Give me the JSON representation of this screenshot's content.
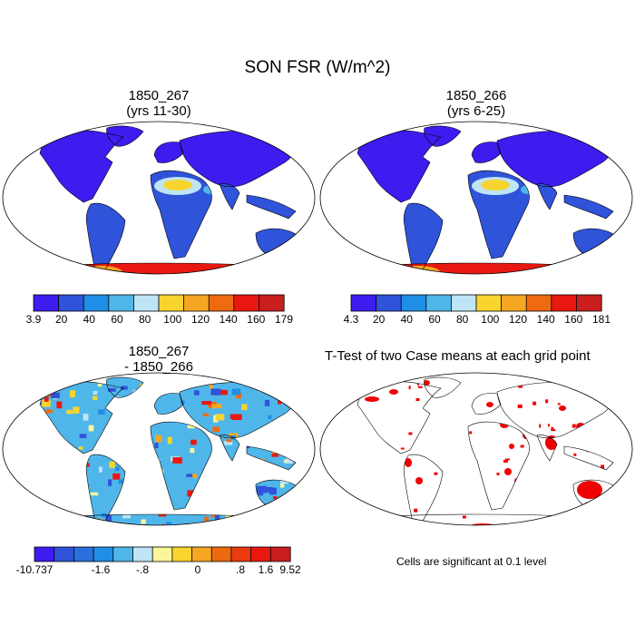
{
  "title": "SON FSR (W/m^2)",
  "panels": [
    {
      "id": "p1",
      "title_line1": "1850_267",
      "title_line2": "(yrs 11-30)"
    },
    {
      "id": "p2",
      "title_line1": "1850_266",
      "title_line2": "(yrs 6-25)"
    },
    {
      "id": "p3",
      "title_line1": "1850_267",
      "title_line2": "- 1850_266"
    },
    {
      "id": "p4",
      "title_line1": "T-Test of two Case means at each grid point"
    }
  ],
  "colorbars": [
    {
      "id": "cb1",
      "colors": [
        "#3d1cf0",
        "#2f53d9",
        "#1f8ee6",
        "#4fb6ea",
        "#bfe4f5",
        "#f7d52e",
        "#f5a623",
        "#ee6a10",
        "#e81810",
        "#c81e1e"
      ],
      "labels": [
        "3.9",
        "20",
        "40",
        "60",
        "80",
        "100",
        "120",
        "140",
        "160",
        "179"
      ]
    },
    {
      "id": "cb2",
      "colors": [
        "#3d1cf0",
        "#2f53d9",
        "#1f8ee6",
        "#4fb6ea",
        "#bfe4f5",
        "#f7d52e",
        "#f5a623",
        "#ee6a10",
        "#e81810",
        "#c81e1e"
      ],
      "labels": [
        "4.3",
        "20",
        "40",
        "60",
        "80",
        "100",
        "120",
        "140",
        "160",
        "181"
      ]
    },
    {
      "id": "cb3",
      "colors": [
        "#3d1cf0",
        "#2f53d9",
        "#2a6fdc",
        "#1f8ee6",
        "#4fb6ea",
        "#bfe4f5",
        "#fbf59a",
        "#f7d52e",
        "#f5a623",
        "#ee6a10",
        "#ec3a10",
        "#e81810",
        "#c81e1e"
      ],
      "labels": [
        "-10.737",
        "-1.6",
        "-.8",
        "0",
        ".8",
        "1.6",
        "9.52"
      ]
    }
  ],
  "significance_note": "Cells are significant at 0.1 level",
  "colors": {
    "significant_cells": "#f00000",
    "coastline": "#000000"
  }
}
